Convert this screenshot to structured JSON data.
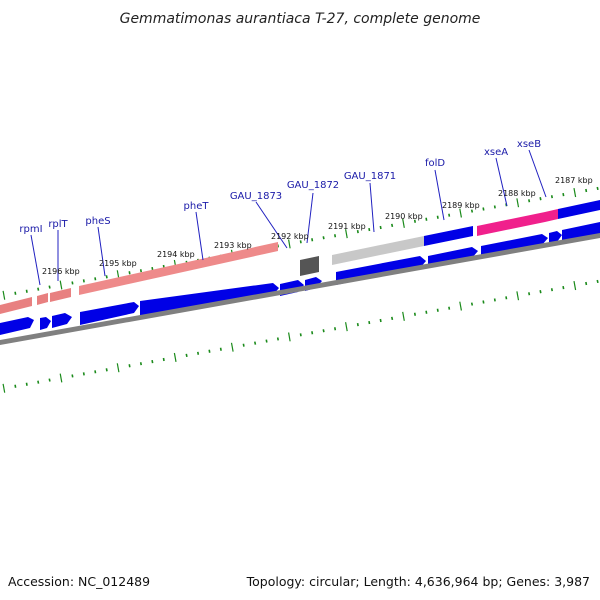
{
  "title": "Gemmatimonas aurantiaca T-27, complete genome",
  "footer": {
    "accession": "Accession: NC_012489",
    "stats": "Topology: circular; Length: 4,636,964 bp; Genes: 3,987"
  },
  "colors": {
    "cds": "#0000e6",
    "trna": "#e88080",
    "rrna_or_ncrna": "#f0208c",
    "pseudo": "#606060",
    "misc": "#c0c0c0",
    "tick": "#1a8a1a",
    "backbone": "#808080",
    "label_line": "#2020c0"
  },
  "scale_labels": [
    "2196 kbp",
    "2195 kbp",
    "2194 kbp",
    "2193 kbp",
    "2192 kbp",
    "2191 kbp",
    "2190 kbp",
    "2189 kbp",
    "2188 kbp",
    "2187 kbp"
  ],
  "gene_labels": [
    "rpmI",
    "rplT",
    "pheS",
    "pheT",
    "GAU_1873",
    "GAU_1872",
    "GAU_1871",
    "folD",
    "xseA",
    "xseB"
  ]
}
